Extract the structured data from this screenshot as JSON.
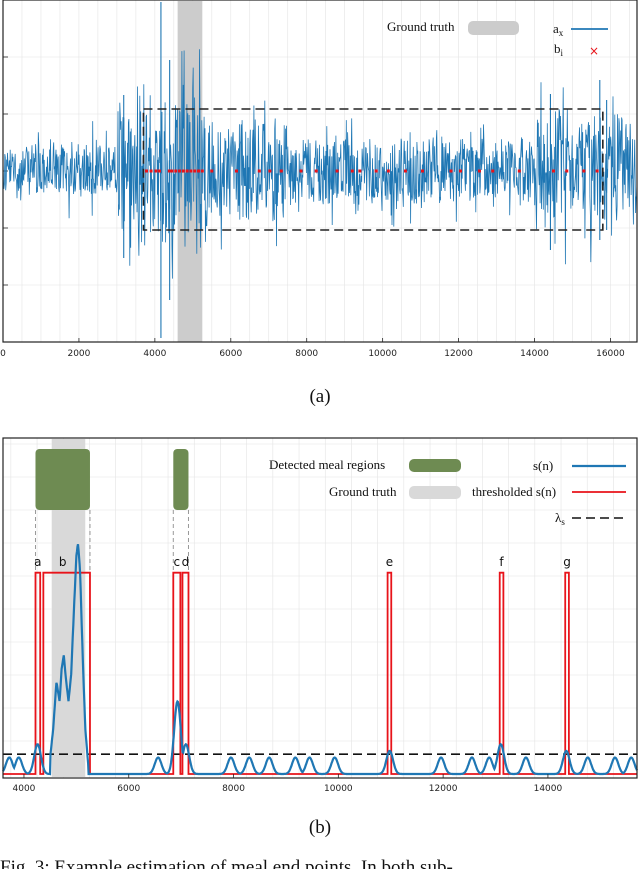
{
  "figure": {
    "caption_a": "(a)",
    "caption_b": "(b)",
    "caption_text": "Fig. 3: Example estimation of meal end points. In both sub-"
  },
  "chart_data": [
    {
      "type": "line",
      "panel": "a",
      "xlim": [
        0,
        16700
      ],
      "x_ticks": [
        "0",
        "2000",
        "4000",
        "6000",
        "8000",
        "10000",
        "12000",
        "14000",
        "16000"
      ],
      "y_range": [
        -1,
        1
      ],
      "grid": true,
      "legend_position": "top-right",
      "series": [
        {
          "name": "a",
          "name_subscript": "x",
          "color": "#1f77b4",
          "kind": "line"
        },
        {
          "name": "b",
          "name_subscript": "i",
          "color": "#e8131a",
          "kind": "marker-x"
        }
      ],
      "ground_truth": {
        "label": "Ground truth",
        "x_range": [
          4600,
          5250
        ],
        "color": "#cccccc"
      },
      "dashed_box": {
        "x_range": [
          3700,
          15800
        ]
      },
      "b_points": [
        3780,
        3900,
        4030,
        4120,
        4380,
        4450,
        4550,
        4650,
        4750,
        4850,
        4950,
        5050,
        5150,
        5250,
        5500,
        6150,
        6750,
        7030,
        7330,
        7850,
        8250,
        8800,
        9200,
        9400,
        9830,
        10150,
        10600,
        11050,
        11800,
        12050,
        12550,
        12900,
        13600,
        14500,
        14850,
        15300,
        15650
      ]
    },
    {
      "type": "line",
      "panel": "b",
      "xlim": [
        3600,
        15700
      ],
      "ylim": [
        0,
        1
      ],
      "x_ticks": [
        "4000",
        "6000",
        "8000",
        "10000",
        "12000",
        "14000"
      ],
      "grid": true,
      "legend_position": "top-right",
      "threshold": 0.06,
      "series": [
        {
          "name": "s(n)",
          "color": "#1f77b4",
          "kind": "line"
        },
        {
          "name": "thresholded s(n)",
          "color": "#e8131a",
          "kind": "line"
        },
        {
          "name": "λ",
          "name_subscript": "s",
          "color": "#000000",
          "kind": "dashed"
        }
      ],
      "ground_truth": {
        "label": "Ground truth",
        "x_range": [
          4530,
          5170
        ],
        "color": "#d9d9d9"
      },
      "meal_regions": {
        "label": "Detected meal regions",
        "color": "#6e8b52",
        "ranges": [
          [
            4220,
            5260
          ],
          [
            6850,
            7140
          ]
        ]
      },
      "segments": [
        {
          "label": "a",
          "x_range": [
            4220,
            4310
          ]
        },
        {
          "label": "b",
          "x_range": [
            4370,
            5260
          ]
        },
        {
          "label": "c",
          "x_range": [
            6850,
            6985
          ]
        },
        {
          "label": "d",
          "x_range": [
            7025,
            7140
          ]
        },
        {
          "label": "e",
          "x_range": [
            10940,
            11010
          ]
        },
        {
          "label": "f",
          "x_range": [
            13080,
            13150
          ]
        },
        {
          "label": "g",
          "x_range": [
            14330,
            14400
          ]
        }
      ],
      "bumps": [
        {
          "x": 3720,
          "h": 0.05
        },
        {
          "x": 3900,
          "h": 0.05
        },
        {
          "x": 4260,
          "h": 0.09
        },
        {
          "x": 6560,
          "h": 0.05
        },
        {
          "x": 6930,
          "h": 0.22
        },
        {
          "x": 7090,
          "h": 0.09
        },
        {
          "x": 7950,
          "h": 0.05
        },
        {
          "x": 8300,
          "h": 0.05
        },
        {
          "x": 8680,
          "h": 0.05
        },
        {
          "x": 9180,
          "h": 0.05
        },
        {
          "x": 9450,
          "h": 0.05
        },
        {
          "x": 9930,
          "h": 0.05
        },
        {
          "x": 10980,
          "h": 0.07
        },
        {
          "x": 11960,
          "h": 0.05
        },
        {
          "x": 12550,
          "h": 0.05
        },
        {
          "x": 12880,
          "h": 0.05
        },
        {
          "x": 13100,
          "h": 0.09
        },
        {
          "x": 13580,
          "h": 0.05
        },
        {
          "x": 14350,
          "h": 0.07
        },
        {
          "x": 14760,
          "h": 0.05
        },
        {
          "x": 15280,
          "h": 0.05
        },
        {
          "x": 15590,
          "h": 0.05
        }
      ],
      "meal_profile": [
        [
          4500,
          0.05
        ],
        [
          4560,
          0.14
        ],
        [
          4620,
          0.28
        ],
        [
          4680,
          0.22
        ],
        [
          4720,
          0.32
        ],
        [
          4760,
          0.36
        ],
        [
          4800,
          0.29
        ],
        [
          4850,
          0.22
        ],
        [
          4900,
          0.3
        ],
        [
          4960,
          0.52
        ],
        [
          5000,
          0.66
        ],
        [
          5030,
          0.7
        ],
        [
          5070,
          0.62
        ],
        [
          5120,
          0.36
        ],
        [
          5170,
          0.14
        ],
        [
          5230,
          0.02
        ]
      ]
    }
  ]
}
